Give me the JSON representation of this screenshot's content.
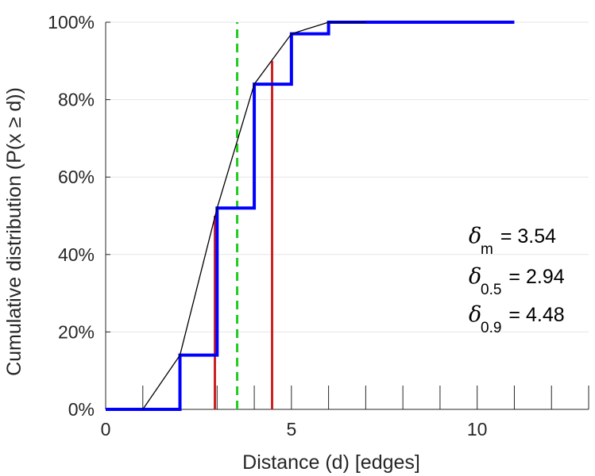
{
  "chart_data": {
    "type": "line",
    "xlabel": "Distance (d) [edges]",
    "ylabel": "Cumulative distribution (P(x ≥ d))",
    "xlim": [
      0,
      13
    ],
    "ylim": [
      0,
      100
    ],
    "x_ticks": [
      0,
      5,
      10
    ],
    "x_tick_labels": [
      "0",
      "5",
      "10"
    ],
    "y_ticks": [
      0,
      20,
      40,
      60,
      80,
      100
    ],
    "y_tick_labels": [
      "0%",
      "20%",
      "40%",
      "60%",
      "80%",
      "100%"
    ],
    "grid": "horizontal",
    "series": [
      {
        "style": "step",
        "color": "#0000ff",
        "x": [
          0,
          2,
          3,
          4,
          5,
          6,
          7,
          11
        ],
        "y": [
          0,
          14,
          52,
          84,
          97,
          100,
          100,
          100
        ]
      },
      {
        "style": "line",
        "color": "#000000",
        "x": [
          1,
          2,
          3,
          4,
          5,
          6,
          7
        ],
        "y": [
          0,
          14,
          52,
          84,
          97,
          100,
          100
        ]
      }
    ],
    "vlines": [
      {
        "x": 3.54,
        "y": 100,
        "color": "#22cc22",
        "style": "dashed"
      },
      {
        "x": 2.94,
        "y": 50,
        "color": "#cc2222",
        "style": "solid"
      },
      {
        "x": 4.48,
        "y": 90,
        "color": "#cc2222",
        "style": "solid"
      }
    ],
    "annotations": [
      {
        "symbol": "δ",
        "sub": "m",
        "text": "= 3.54"
      },
      {
        "symbol": "δ",
        "sub": "0.5",
        "text": "= 2.94"
      },
      {
        "symbol": "δ",
        "sub": "0.9",
        "text": "= 4.48"
      }
    ]
  }
}
